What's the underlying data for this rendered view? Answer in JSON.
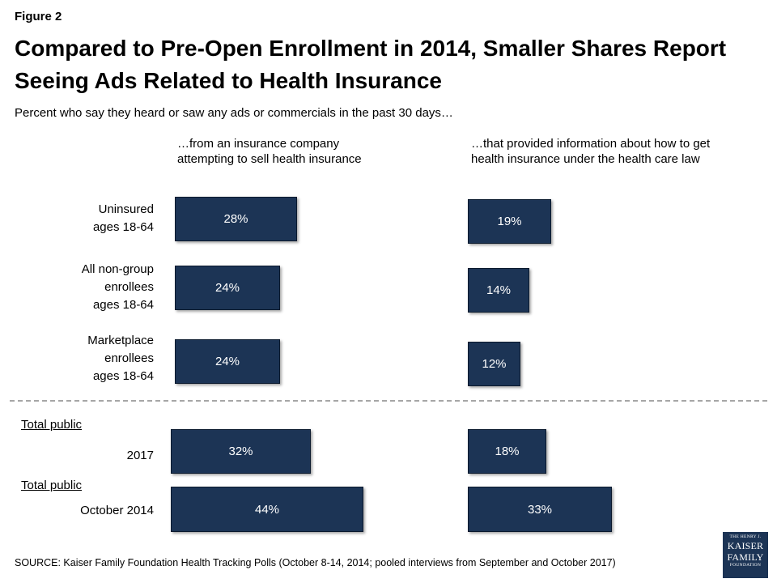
{
  "figure_label": "Figure 2",
  "title": "Compared to Pre-Open Enrollment in 2014, Smaller Shares Report Seeing Ads Related to Health Insurance",
  "subtitle": "Percent who say they heard or saw any ads or commercials in the past 30 days…",
  "column_headers": [
    "…from an insurance company attempting to sell health insurance",
    "…that provided information about how to get health insurance under the health care law"
  ],
  "group_labels": [
    "Total public",
    "Total public"
  ],
  "source": "SOURCE: Kaiser Family Foundation Health Tracking Polls (October 8-14, 2014;  pooled interviews from September and October 2017)",
  "logo": {
    "line1": "THE HENRY J.",
    "line2": "KAISER",
    "line3": "FAMILY",
    "line4": "FOUNDATION"
  },
  "colors": {
    "bar": "#1c3455",
    "bar_text": "#ffffff",
    "divider": "#a6a6a6"
  },
  "chart_data": {
    "type": "bar",
    "orientation": "horizontal",
    "categories": [
      "Uninsured ages 18-64",
      "All non-group enrollees ages 18-64",
      "Marketplace enrollees ages 18-64",
      "2017",
      "October 2014"
    ],
    "series": [
      {
        "name": "…from an insurance company attempting to sell health insurance",
        "values": [
          28,
          24,
          24,
          32,
          44
        ]
      },
      {
        "name": "…that provided information about how to get health insurance under the health care law",
        "values": [
          19,
          14,
          12,
          18,
          33
        ]
      }
    ],
    "data_labels": [
      [
        "28%",
        "24%",
        "24%",
        "32%",
        "44%"
      ],
      [
        "19%",
        "14%",
        "12%",
        "18%",
        "33%"
      ]
    ],
    "unit": "%"
  }
}
